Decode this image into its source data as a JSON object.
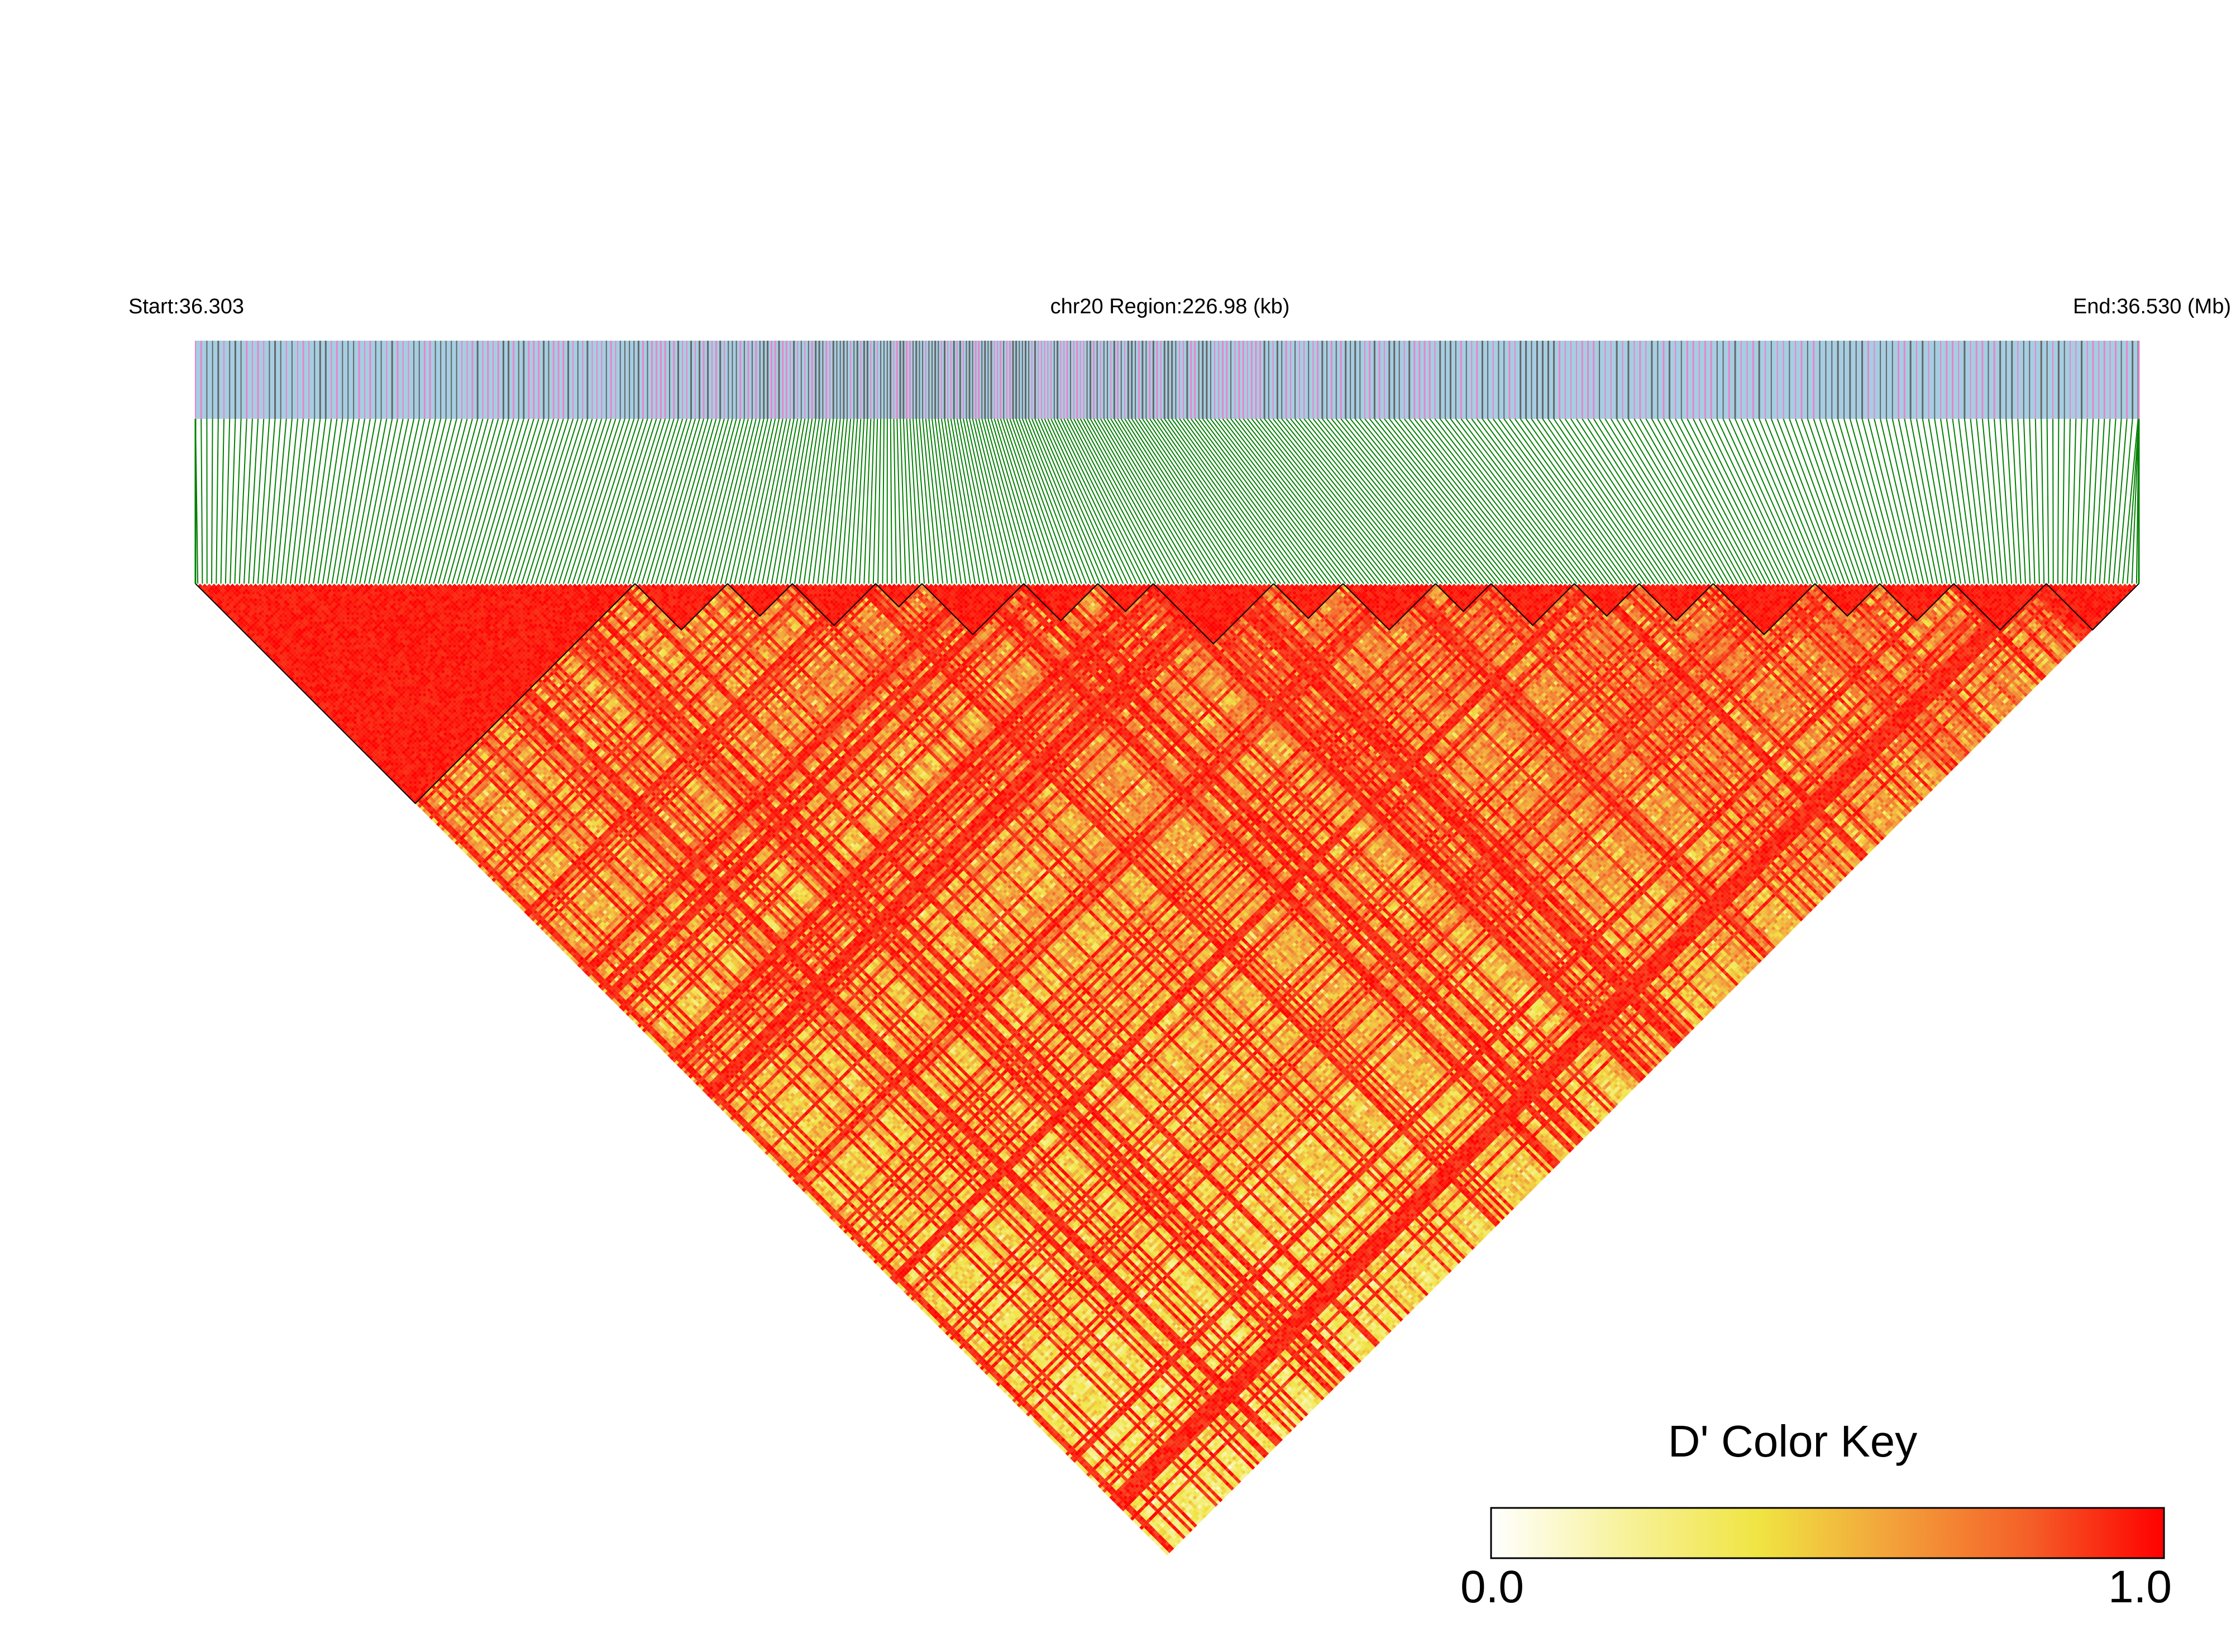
{
  "chart_data": {
    "type": "heatmap",
    "title": "chr20 Region:226.98 (kb)",
    "start_label": "Start:36.303",
    "end_label": "End:36.530 (Mb)",
    "chromosome": "chr20",
    "region_start_mb": 36.303,
    "region_end_mb": 36.53,
    "region_length_kb": 226.98,
    "snp_count": 420,
    "matrix_layout": "inverted triangle, pairwise LD (D') between SNPs",
    "color_scale": {
      "title": "D' Color Key",
      "min_label": "0.0",
      "max_label": "1.0",
      "range": [
        0.0,
        1.0
      ],
      "stops": [
        "#ffffff",
        "#f7f29a",
        "#f0e442",
        "#f3a03a",
        "#f45f28",
        "#ff0000"
      ]
    },
    "haplotype_blocks_drawn": true,
    "block_outline_color": "#000000"
  },
  "colors": {
    "track_background": "#a6cee3",
    "track_tick_pink": "#e686c8",
    "track_tick_gray": "#666666",
    "connector_lines": "#008000",
    "high_ld": "#ff0000",
    "low_ld": "#ffffff"
  }
}
